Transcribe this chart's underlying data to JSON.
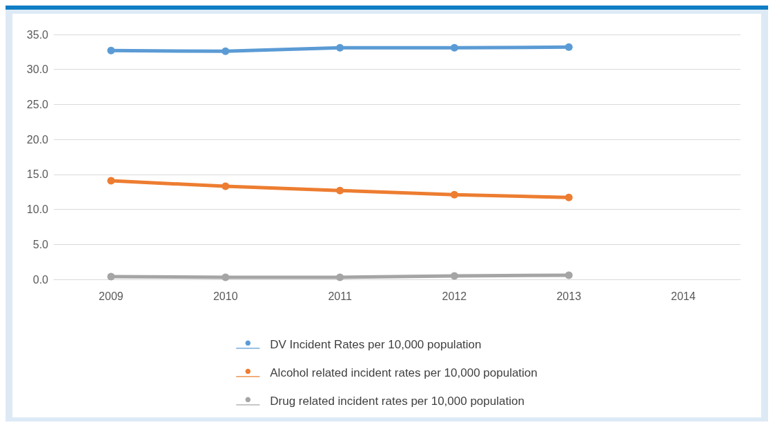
{
  "chart_data": {
    "type": "line",
    "categories": [
      "2009",
      "2010",
      "2011",
      "2012",
      "2013",
      "2014"
    ],
    "series": [
      {
        "name": "DV Incident Rates per 10,000 population",
        "color": "#5b9bd5",
        "values": [
          32.7,
          32.6,
          33.1,
          33.1,
          33.2,
          null
        ]
      },
      {
        "name": "Alcohol related incident rates per 10,000 population",
        "color": "#ed7d31",
        "values": [
          14.1,
          13.3,
          12.7,
          12.1,
          11.7,
          null
        ]
      },
      {
        "name": "Drug related incident rates per 10,000 population",
        "color": "#a5a5a5",
        "values": [
          0.4,
          0.3,
          0.3,
          0.5,
          0.6,
          null
        ]
      }
    ],
    "ylim": [
      0,
      35
    ],
    "yticks": [
      {
        "value": 0,
        "label": "0.0"
      },
      {
        "value": 5,
        "label": "5.0"
      },
      {
        "value": 10,
        "label": "10.0"
      },
      {
        "value": 15,
        "label": "15.0"
      },
      {
        "value": 20,
        "label": "20.0"
      },
      {
        "value": 25,
        "label": "25.0"
      },
      {
        "value": 30,
        "label": "30.0"
      },
      {
        "value": 35,
        "label": "35.0"
      }
    ],
    "grid": "y",
    "legend": "bottom",
    "marker": "circle",
    "line_style": "solid"
  }
}
